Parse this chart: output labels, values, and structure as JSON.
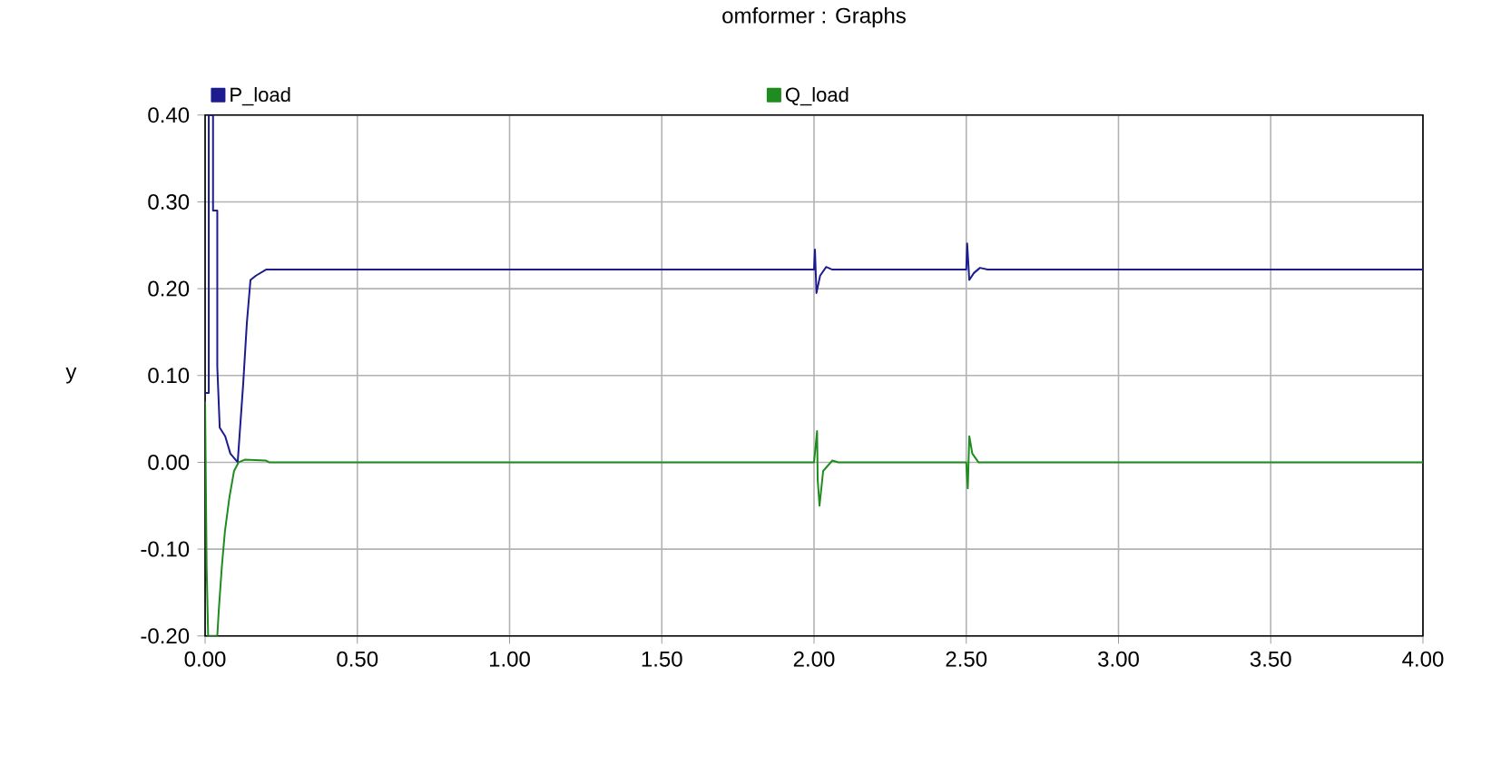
{
  "chart_data": {
    "type": "line",
    "title": "omformer : Graphs",
    "ylabel": "y",
    "xlim": [
      0,
      4
    ],
    "ylim": [
      -0.2,
      0.4
    ],
    "xticks": [
      {
        "value": 0,
        "label": "0.00"
      },
      {
        "value": 0.5,
        "label": "0.50"
      },
      {
        "value": 1,
        "label": "1.00"
      },
      {
        "value": 1.5,
        "label": "1.50"
      },
      {
        "value": 2,
        "label": "2.00"
      },
      {
        "value": 2.5,
        "label": "2.50"
      },
      {
        "value": 3,
        "label": "3.00"
      },
      {
        "value": 3.5,
        "label": "3.50"
      },
      {
        "value": 4,
        "label": "4.00"
      }
    ],
    "yticks": [
      {
        "value": -0.2,
        "label": "-0.20"
      },
      {
        "value": -0.1,
        "label": "-0.10"
      },
      {
        "value": 0,
        "label": "0.00"
      },
      {
        "value": 0.1,
        "label": "0.10"
      },
      {
        "value": 0.2,
        "label": "0.20"
      },
      {
        "value": 0.3,
        "label": "0.30"
      },
      {
        "value": 0.4,
        "label": "0.40"
      }
    ],
    "grid": true,
    "legend": "top",
    "marker": "none",
    "line_style": "solid",
    "series": [
      {
        "name": "P_load",
        "color": "#1c1c8f",
        "x": [
          0,
          0.012,
          0.012,
          0.026,
          0.026,
          0.04,
          0.04,
          0.048,
          0.066,
          0.083,
          0.107,
          0.125,
          0.137,
          0.149,
          0.167,
          0.2,
          2.0,
          2.003,
          2.008,
          2.02,
          2.04,
          2.06,
          2.5,
          2.503,
          2.51,
          2.525,
          2.545,
          2.57,
          4.0
        ],
        "values": [
          0.08,
          0.08,
          0.4,
          0.4,
          0.29,
          0.29,
          0.11,
          0.04,
          0.03,
          0.01,
          0.0,
          0.09,
          0.16,
          0.21,
          0.215,
          0.222,
          0.222,
          0.245,
          0.195,
          0.215,
          0.225,
          0.222,
          0.222,
          0.252,
          0.21,
          0.218,
          0.224,
          0.222,
          0.222
        ]
      },
      {
        "name": "Q_load",
        "color": "#1e8c1e",
        "x": [
          0,
          0.005,
          0.01,
          0.04,
          0.045,
          0.055,
          0.065,
          0.08,
          0.095,
          0.11,
          0.13,
          0.2,
          0.21,
          2.0,
          2.01,
          2.012,
          2.018,
          2.03,
          2.06,
          2.08,
          2.5,
          2.505,
          2.51,
          2.52,
          2.54,
          2.57,
          4.0
        ],
        "values": [
          0.07,
          -0.12,
          -0.2,
          -0.2,
          -0.17,
          -0.12,
          -0.08,
          -0.04,
          -0.01,
          0.0,
          0.003,
          0.002,
          0.0,
          0.0,
          0.036,
          -0.02,
          -0.05,
          -0.01,
          0.002,
          0.0,
          0.0,
          -0.03,
          0.03,
          0.01,
          0.0,
          0.0,
          0.0
        ]
      }
    ]
  }
}
